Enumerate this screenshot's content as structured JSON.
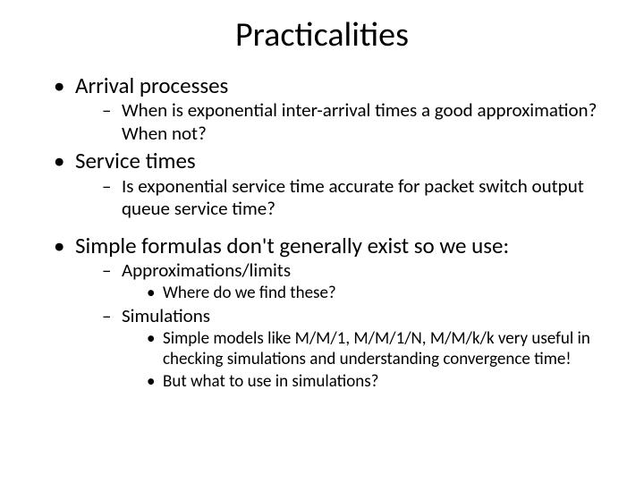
{
  "title": "Practicalities",
  "bullets": {
    "b1": "Arrival processes",
    "b1_1": "When is exponential inter-arrival times a good approximation? When not?",
    "b2": "Service times",
    "b2_1": "Is exponential service time accurate for packet switch output queue service time?",
    "b3": "Simple formulas don't generally exist so we use:",
    "b3_1": "Approximations/limits",
    "b3_1_1": "Where do we find these?",
    "b3_2": "Simulations",
    "b3_2_1": "Simple models like M/M/1, M/M/1/N, M/M/k/k very useful in checking simulations and understanding convergence time!",
    "b3_2_2": "But what to use in simulations?"
  },
  "style": {
    "background_color": "#ffffff",
    "text_color": "#000000",
    "title_fontsize": 38,
    "lvl1_fontsize": 25,
    "lvl2_fontsize": 21,
    "lvl3_fontsize": 19,
    "font_family": "Calibri"
  }
}
